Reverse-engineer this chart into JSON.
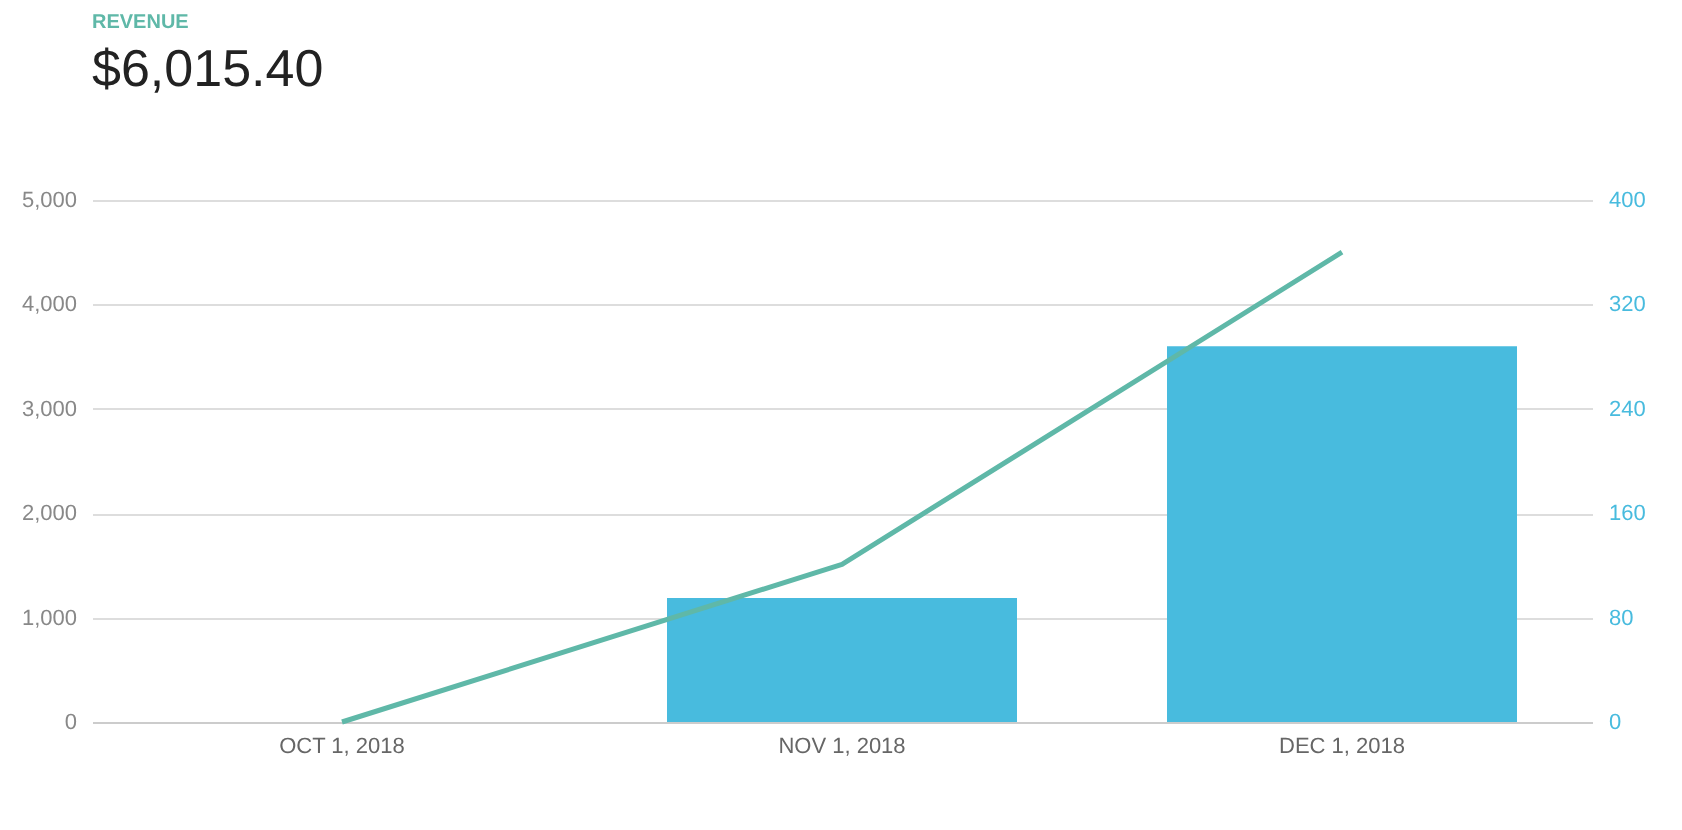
{
  "chart_data": {
    "type": "bar",
    "title": "REVENUE",
    "subtitle": "$6,015.40",
    "categories": [
      "OCT 1, 2018",
      "NOV 1, 2018",
      "DEC 1, 2018"
    ],
    "series": [
      {
        "axis": "y2",
        "color": "#48bbde",
        "values": [
          0,
          95,
          288
        ]
      },
      {
        "type": "line",
        "color": "#5fb8a8",
        "values": [
          0,
          1510,
          4500
        ]
      }
    ],
    "ylim": [
      0,
      5000
    ],
    "yticks": [
      {
        "value": 0,
        "label": "0"
      },
      {
        "value": 1000,
        "label": "1,000"
      },
      {
        "value": 2000,
        "label": "2,000"
      },
      {
        "value": 3000,
        "label": "3,000"
      },
      {
        "value": 4000,
        "label": "4,000"
      },
      {
        "value": 5000,
        "label": "5,000"
      }
    ],
    "y2lim": [
      0,
      400
    ],
    "y2ticks": [
      0,
      80,
      160,
      240,
      320,
      400
    ],
    "grid": "y"
  }
}
